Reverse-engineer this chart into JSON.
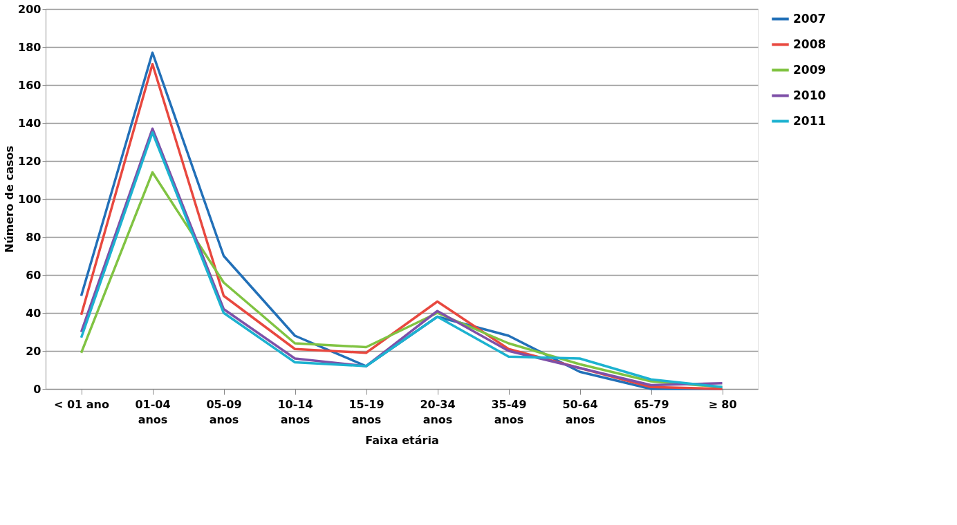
{
  "chart_data": {
    "type": "line",
    "xlabel": "Faixa etária",
    "ylabel": "Número de casos",
    "categories": [
      "< 01 ano",
      "01-04\nanos",
      "05-09\nanos",
      "10-14\nanos",
      "15-19\nanos",
      "20-34\nanos",
      "35-49\nanos",
      "50-64\nanos",
      "65-79\nanos",
      "≥ 80"
    ],
    "series": [
      {
        "name": "2007",
        "color": "#2270b8",
        "values": [
          49,
          177,
          70,
          28,
          12,
          38,
          28,
          9,
          0,
          0
        ]
      },
      {
        "name": "2008",
        "color": "#e8483f",
        "values": [
          39,
          171,
          49,
          21,
          19,
          46,
          21,
          11,
          1,
          0
        ]
      },
      {
        "name": "2009",
        "color": "#80c342",
        "values": [
          19,
          114,
          56,
          24,
          22,
          40,
          24,
          13,
          4,
          1
        ]
      },
      {
        "name": "2010",
        "color": "#7e50a8",
        "values": [
          30,
          137,
          42,
          16,
          12,
          41,
          20,
          11,
          2,
          3
        ]
      },
      {
        "name": "2011",
        "color": "#1cb2d0",
        "values": [
          27,
          135,
          40,
          14,
          12,
          38,
          17,
          16,
          5,
          1
        ]
      }
    ],
    "ylim": [
      0,
      200
    ],
    "yticks": [
      0,
      20,
      40,
      60,
      80,
      100,
      120,
      140,
      160,
      180,
      200
    ],
    "grid": "y",
    "legend": "right",
    "marker": "none",
    "line_style": "solid"
  }
}
